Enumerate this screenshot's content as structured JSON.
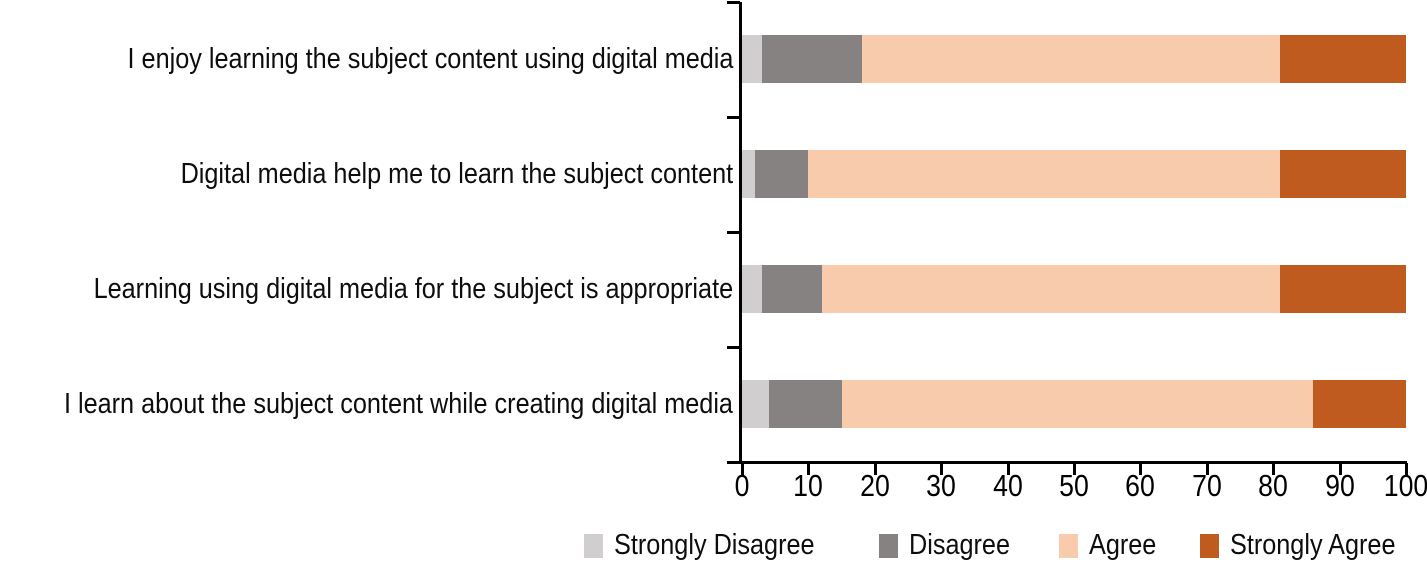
{
  "chart_data": {
    "type": "bar",
    "orientation": "horizontal",
    "stacked": true,
    "title": "",
    "xlabel": "",
    "ylabel": "",
    "xlim": [
      0,
      100
    ],
    "x_ticks": [
      0,
      10,
      20,
      30,
      40,
      50,
      60,
      70,
      80,
      90,
      100
    ],
    "grid": false,
    "legend_position": "bottom",
    "axis_color": "#000000",
    "categories": [
      "I enjoy learning the subject content using digital media",
      "Digital media help me to learn the subject content",
      "Learning using digital media for the subject is appropriate",
      "I learn about the subject content while creating digital media"
    ],
    "series": [
      {
        "name": "Strongly Disagree",
        "color": "#D0CECE",
        "values": [
          3,
          2,
          3,
          4
        ]
      },
      {
        "name": "Disagree",
        "color": "#868282",
        "values": [
          15,
          8,
          9,
          11
        ]
      },
      {
        "name": "Agree",
        "color": "#F8CBAD",
        "values": [
          63,
          71,
          69,
          71
        ]
      },
      {
        "name": "Strongly Agree",
        "color": "#C05B1F",
        "values": [
          19,
          19,
          19,
          14
        ]
      }
    ]
  }
}
